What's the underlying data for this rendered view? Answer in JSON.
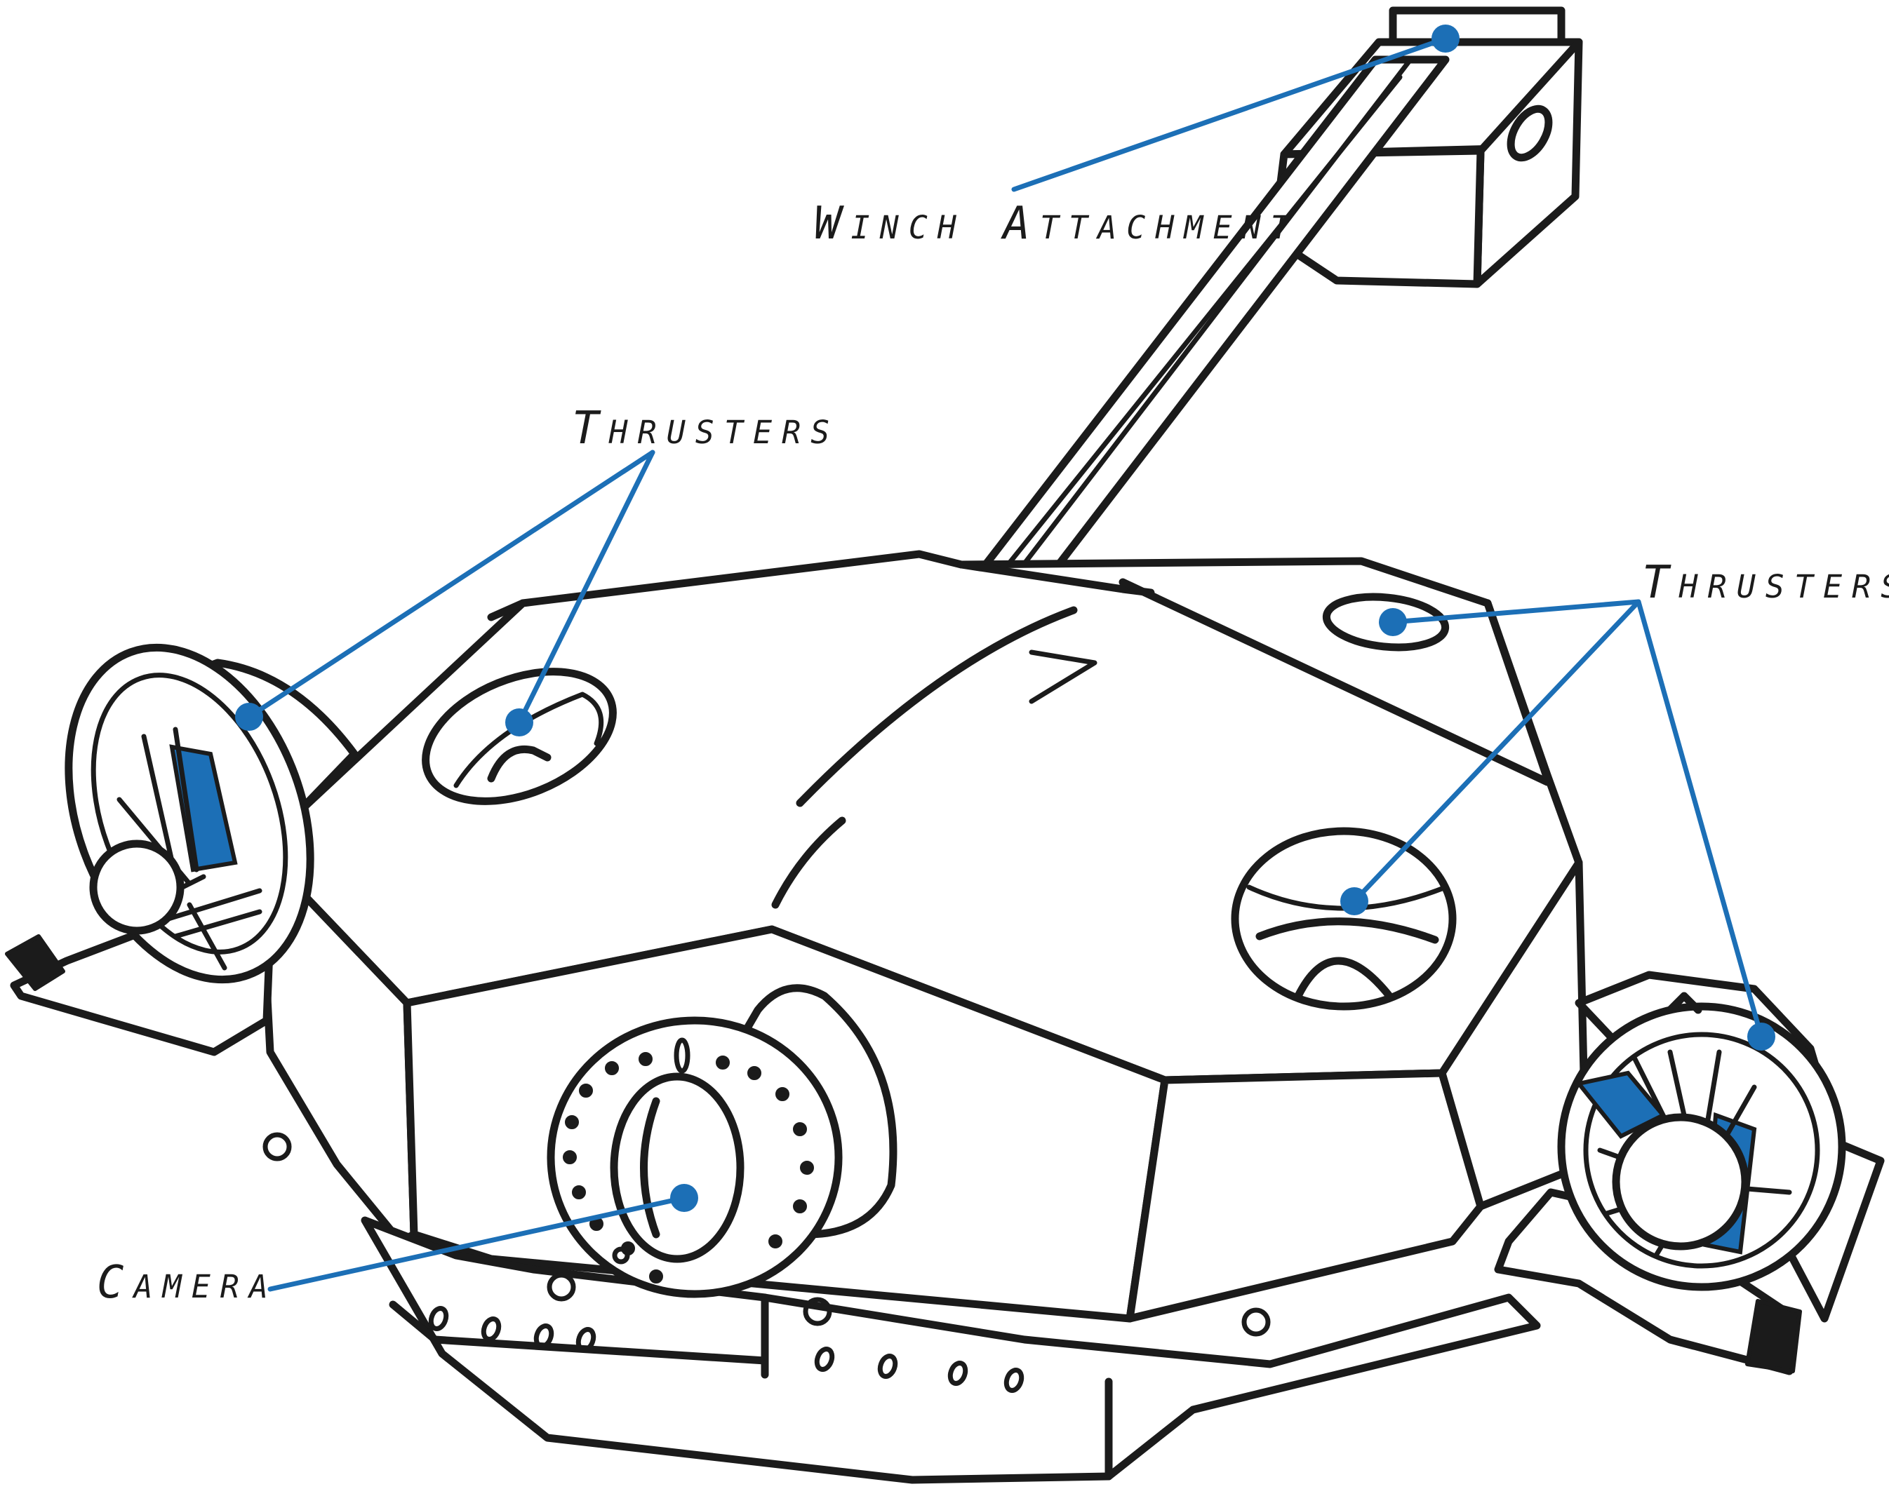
{
  "labels": {
    "winch": "Winch Attachment",
    "thrusters_left": "Thrusters",
    "thrusters_right": "Thrusters",
    "camera": "Camera"
  },
  "colors": {
    "leader": "#1c6fb6",
    "ink": "#1b1b1b",
    "background": "#ffffff"
  }
}
